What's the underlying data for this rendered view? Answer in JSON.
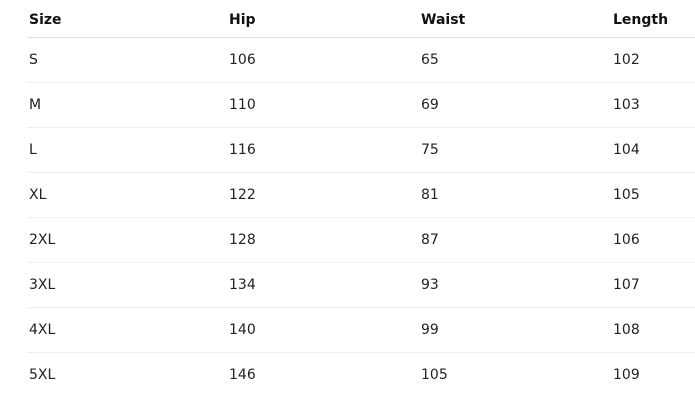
{
  "table": {
    "header": [
      "Size",
      "Hip",
      "Waist",
      "Length"
    ],
    "rows": [
      [
        "S",
        106,
        65,
        102
      ],
      [
        "M",
        110,
        69,
        103
      ],
      [
        "L",
        116,
        75,
        104
      ],
      [
        "XL",
        122,
        81,
        105
      ],
      [
        "2XL",
        128,
        87,
        106
      ],
      [
        "3XL",
        134,
        93,
        107
      ],
      [
        "4XL",
        140,
        99,
        108
      ],
      [
        "5XL",
        146,
        105,
        109
      ]
    ]
  }
}
